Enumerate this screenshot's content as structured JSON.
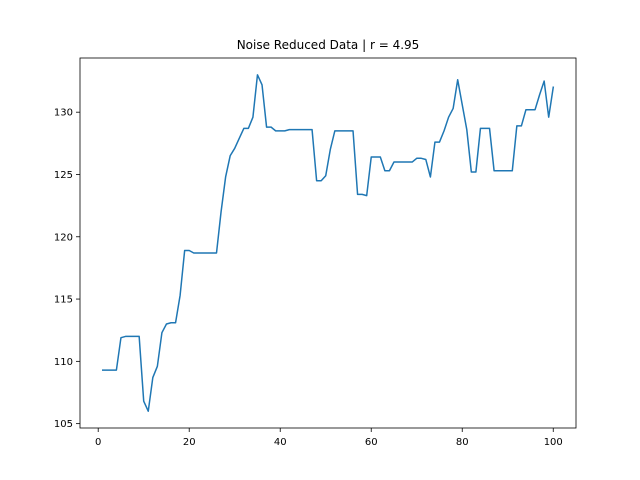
{
  "chart_data": {
    "type": "line",
    "title": "Noise Reduced Data | r = 4.95",
    "xlabel": "",
    "ylabel": "",
    "xlim": [
      -4,
      105
    ],
    "ylim": [
      104.65,
      134.35
    ],
    "xticks": [
      0,
      20,
      40,
      60,
      80,
      100
    ],
    "yticks": [
      105,
      110,
      115,
      120,
      125,
      130
    ],
    "grid": false,
    "line_color": "#1f77b4",
    "series": [
      {
        "x": [
          1,
          2,
          3,
          4,
          5,
          6,
          7,
          8,
          9,
          10,
          11,
          12,
          13,
          14,
          15,
          16,
          17,
          18,
          19,
          20,
          21,
          22,
          23,
          24,
          25,
          26,
          27,
          28,
          29,
          30,
          31,
          32,
          33,
          34,
          35,
          36,
          37,
          38,
          39,
          40,
          41,
          42,
          43,
          44,
          45,
          46,
          47,
          48,
          49,
          50,
          51,
          52,
          53,
          54,
          55,
          56,
          57,
          58,
          59,
          60,
          61,
          62,
          63,
          64,
          65,
          66,
          67,
          68,
          69,
          70,
          71,
          72,
          73,
          74,
          75,
          76,
          77,
          78,
          79,
          80,
          81,
          82,
          83,
          84,
          85,
          86,
          87,
          88,
          89,
          90,
          91,
          92,
          93,
          94,
          95,
          96,
          97,
          98,
          99,
          100
        ],
        "y": [
          109.3,
          109.3,
          109.3,
          109.3,
          111.9,
          112.0,
          112.0,
          112.0,
          112.0,
          106.8,
          106.0,
          108.7,
          109.6,
          112.3,
          113.0,
          113.1,
          113.1,
          115.3,
          118.9,
          118.9,
          118.7,
          118.7,
          118.7,
          118.7,
          118.7,
          118.7,
          122.0,
          124.8,
          126.5,
          127.1,
          127.9,
          128.7,
          128.7,
          129.6,
          133.0,
          132.2,
          128.8,
          128.8,
          128.5,
          128.5,
          128.5,
          128.6,
          128.6,
          128.6,
          128.6,
          128.6,
          128.6,
          124.5,
          124.5,
          124.9,
          127.0,
          128.5,
          128.5,
          128.5,
          128.5,
          128.5,
          123.4,
          123.4,
          123.3,
          126.4,
          126.4,
          126.4,
          125.3,
          125.3,
          126.0,
          126.0,
          126.0,
          126.0,
          126.0,
          126.3,
          126.3,
          126.2,
          124.8,
          127.6,
          127.6,
          128.5,
          129.6,
          130.3,
          132.6,
          130.6,
          128.6,
          125.2,
          125.2,
          128.7,
          128.7,
          128.7,
          125.3,
          125.3,
          125.3,
          125.3,
          125.3,
          128.9,
          128.9,
          130.2,
          130.2,
          130.2,
          131.4,
          132.5,
          129.6,
          132.0
        ]
      }
    ]
  }
}
